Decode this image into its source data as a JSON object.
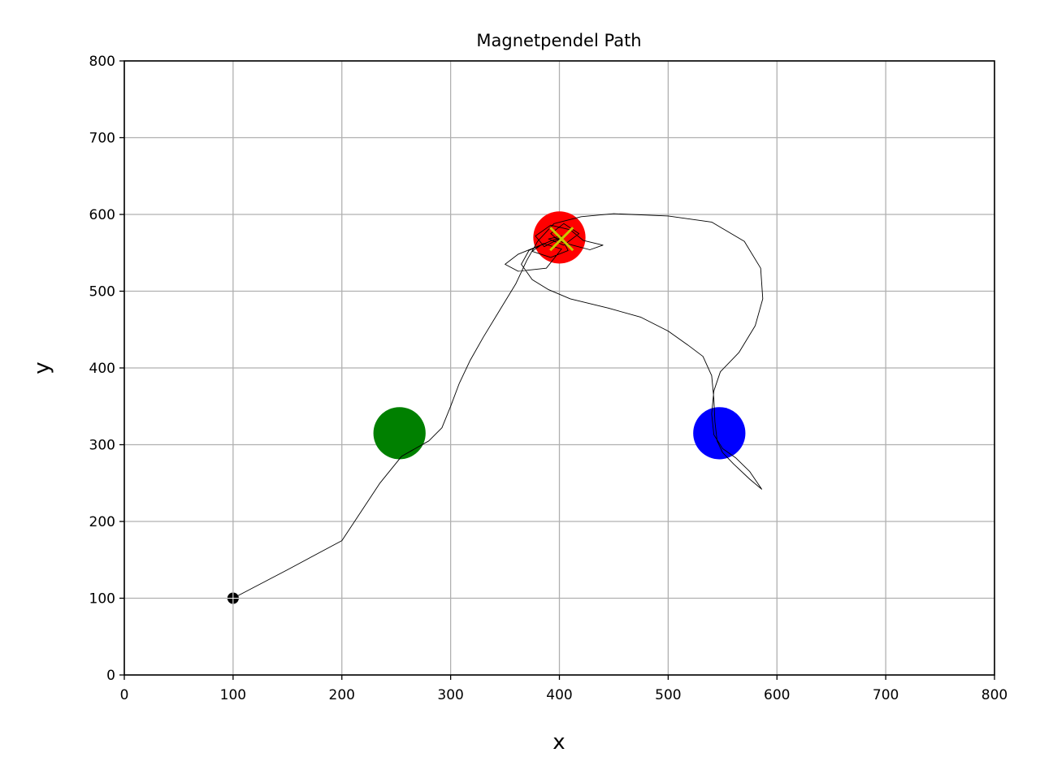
{
  "chart_data": {
    "type": "line",
    "title": "Magnetpendel Path",
    "xlabel": "x",
    "ylabel": "y",
    "xlim": [
      0,
      800
    ],
    "ylim": [
      0,
      800
    ],
    "xticks": [
      0,
      100,
      200,
      300,
      400,
      500,
      600,
      700,
      800
    ],
    "yticks": [
      0,
      100,
      200,
      300,
      400,
      500,
      600,
      700,
      800
    ],
    "grid": true,
    "magnets": [
      {
        "color": "#008000",
        "x": 253,
        "y": 315,
        "r": 24
      },
      {
        "color": "#ff0000",
        "x": 400,
        "y": 570,
        "r": 24
      },
      {
        "color": "#0000ff",
        "x": 547,
        "y": 315,
        "r": 24
      }
    ],
    "start": {
      "x": 100,
      "y": 100,
      "color": "#000000"
    },
    "end_marker": {
      "x": 402,
      "y": 568,
      "color": "#c8c800"
    },
    "path": [
      [
        100,
        100
      ],
      [
        150,
        137
      ],
      [
        200,
        175
      ],
      [
        235,
        250
      ],
      [
        255,
        285
      ],
      [
        280,
        305
      ],
      [
        292,
        322
      ],
      [
        300,
        350
      ],
      [
        308,
        380
      ],
      [
        318,
        410
      ],
      [
        330,
        440
      ],
      [
        345,
        475
      ],
      [
        360,
        510
      ],
      [
        370,
        540
      ],
      [
        380,
        565
      ],
      [
        395,
        588
      ],
      [
        420,
        597
      ],
      [
        450,
        601
      ],
      [
        500,
        598
      ],
      [
        540,
        590
      ],
      [
        570,
        565
      ],
      [
        585,
        530
      ],
      [
        587,
        490
      ],
      [
        580,
        455
      ],
      [
        565,
        420
      ],
      [
        548,
        395
      ],
      [
        542,
        370
      ],
      [
        540,
        340
      ],
      [
        542,
        313
      ],
      [
        550,
        295
      ],
      [
        562,
        283
      ],
      [
        575,
        265
      ],
      [
        586,
        242
      ],
      [
        575,
        255
      ],
      [
        560,
        275
      ],
      [
        550,
        290
      ],
      [
        545,
        305
      ],
      [
        543,
        330
      ],
      [
        542,
        360
      ],
      [
        540,
        390
      ],
      [
        532,
        415
      ],
      [
        518,
        430
      ],
      [
        500,
        448
      ],
      [
        475,
        466
      ],
      [
        445,
        478
      ],
      [
        410,
        490
      ],
      [
        390,
        502
      ],
      [
        375,
        515
      ],
      [
        365,
        535
      ],
      [
        372,
        553
      ],
      [
        388,
        563
      ],
      [
        400,
        570
      ],
      [
        362,
        548
      ],
      [
        350,
        535
      ],
      [
        362,
        526
      ],
      [
        388,
        530
      ],
      [
        402,
        555
      ],
      [
        385,
        562
      ],
      [
        375,
        552
      ],
      [
        392,
        544
      ],
      [
        408,
        553
      ],
      [
        402,
        570
      ],
      [
        386,
        558
      ],
      [
        378,
        572
      ],
      [
        392,
        586
      ],
      [
        410,
        580
      ],
      [
        422,
        566
      ],
      [
        440,
        560
      ],
      [
        428,
        554
      ],
      [
        412,
        560
      ],
      [
        400,
        565
      ],
      [
        392,
        575
      ],
      [
        404,
        588
      ],
      [
        418,
        575
      ],
      [
        404,
        560
      ],
      [
        390,
        568
      ],
      [
        402,
        572
      ],
      [
        398,
        566
      ],
      [
        403,
        569
      ],
      [
        400,
        570
      ]
    ]
  }
}
